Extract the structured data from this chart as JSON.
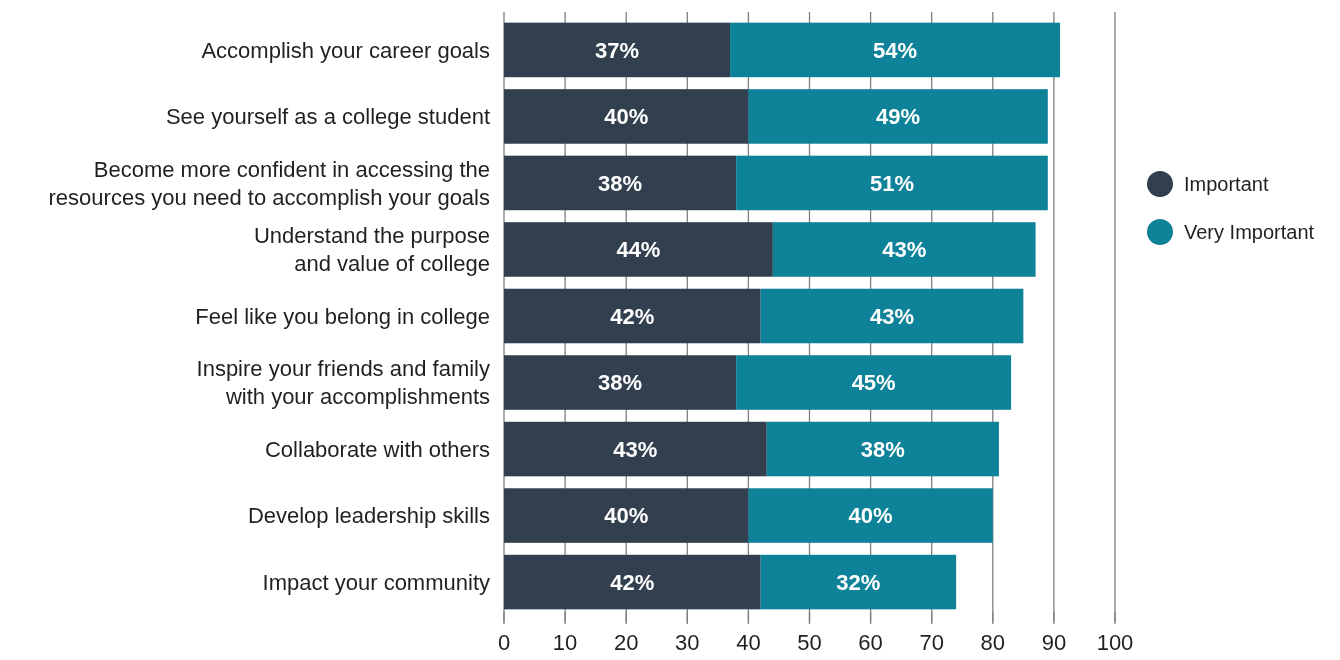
{
  "chart_data": {
    "type": "bar",
    "orientation": "horizontal",
    "stacked": true,
    "categories": [
      "Accomplish your career goals",
      "See yourself as a college student",
      "Become more confident in accessing the\nresources you need to accomplish your goals",
      "Understand the purpose\nand value of college",
      "Feel like you belong in college",
      "Inspire your friends and family\nwith your accomplishments",
      "Collaborate with others",
      "Develop leadership skills",
      "Impact your community"
    ],
    "series": [
      {
        "name": "Important",
        "color": "#323f4f",
        "values": [
          37,
          40,
          38,
          44,
          42,
          38,
          43,
          40,
          42
        ],
        "value_labels": [
          "37%",
          "40%",
          "38%",
          "44%",
          "42%",
          "38%",
          "43%",
          "40%",
          "42%"
        ]
      },
      {
        "name": "Very Important",
        "color": "#0e8298",
        "values": [
          54,
          49,
          51,
          43,
          43,
          45,
          38,
          40,
          32
        ],
        "value_labels": [
          "54%",
          "49%",
          "51%",
          "43%",
          "43%",
          "45%",
          "38%",
          "40%",
          "32%"
        ]
      }
    ],
    "xlim": [
      0,
      100
    ],
    "xticks": [
      0,
      10,
      20,
      30,
      40,
      50,
      60,
      70,
      80,
      90,
      100
    ],
    "grid": "x",
    "legend": "right",
    "marker": "circle"
  }
}
